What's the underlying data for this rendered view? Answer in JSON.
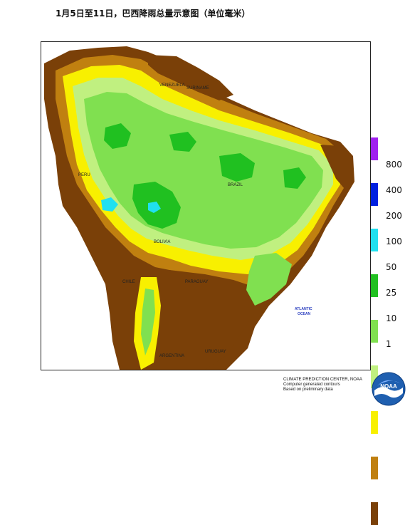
{
  "title": "1月5日至11日，巴西降雨总量示意图（单位毫米）",
  "legend": {
    "items": [
      {
        "label": "",
        "color": "#a020f0"
      },
      {
        "label": "800",
        "color": "#ffffff"
      },
      {
        "label": "",
        "color": "#0020e0"
      },
      {
        "label": "400",
        "color": "#ffffff"
      },
      {
        "label": "",
        "color": "#20e0f0"
      },
      {
        "label": "200",
        "color": "#ffffff"
      },
      {
        "label": "",
        "color": "#20c020"
      },
      {
        "label": "100",
        "color": "#ffffff"
      },
      {
        "label": "",
        "color": "#80e050"
      },
      {
        "label": "50",
        "color": "#ffffff"
      },
      {
        "label": "",
        "color": "#c0f080"
      },
      {
        "label": "25",
        "color": "#ffffff"
      },
      {
        "label": "",
        "color": "#f8f000"
      },
      {
        "label": "10",
        "color": "#ffffff"
      },
      {
        "label": "",
        "color": "#c08010"
      },
      {
        "label": "1",
        "color": "#ffffff"
      },
      {
        "label": "",
        "color": "#7a4008"
      }
    ]
  },
  "map": {
    "labels": {
      "venezuela": "VENEZUELA",
      "suriname": "SURINAME",
      "brazil": "BRAZIL",
      "peru": "PERU",
      "bolivia": "BOLIVIA",
      "paraguay": "PARAGUAY",
      "chile": "CHILE",
      "argentina": "ARGENTINA",
      "uruguay": "URUGUAY",
      "atlantic": "ATLANTIC",
      "ocean": "OCEAN"
    },
    "colors": {
      "dry": "#7a4008",
      "light": "#c08010",
      "yellow": "#f8f000",
      "pale_green": "#c0f080",
      "green": "#80e050",
      "dark_green": "#20c020",
      "cyan": "#20e0f0"
    }
  },
  "credit": {
    "line1": "CLIMATE PREDICTION CENTER, NOAA",
    "line2": "Computer generated contours",
    "line3": "Based on preliminary data"
  },
  "logo": {
    "text": "NOAA",
    "icon": "noaa-logo-icon"
  }
}
